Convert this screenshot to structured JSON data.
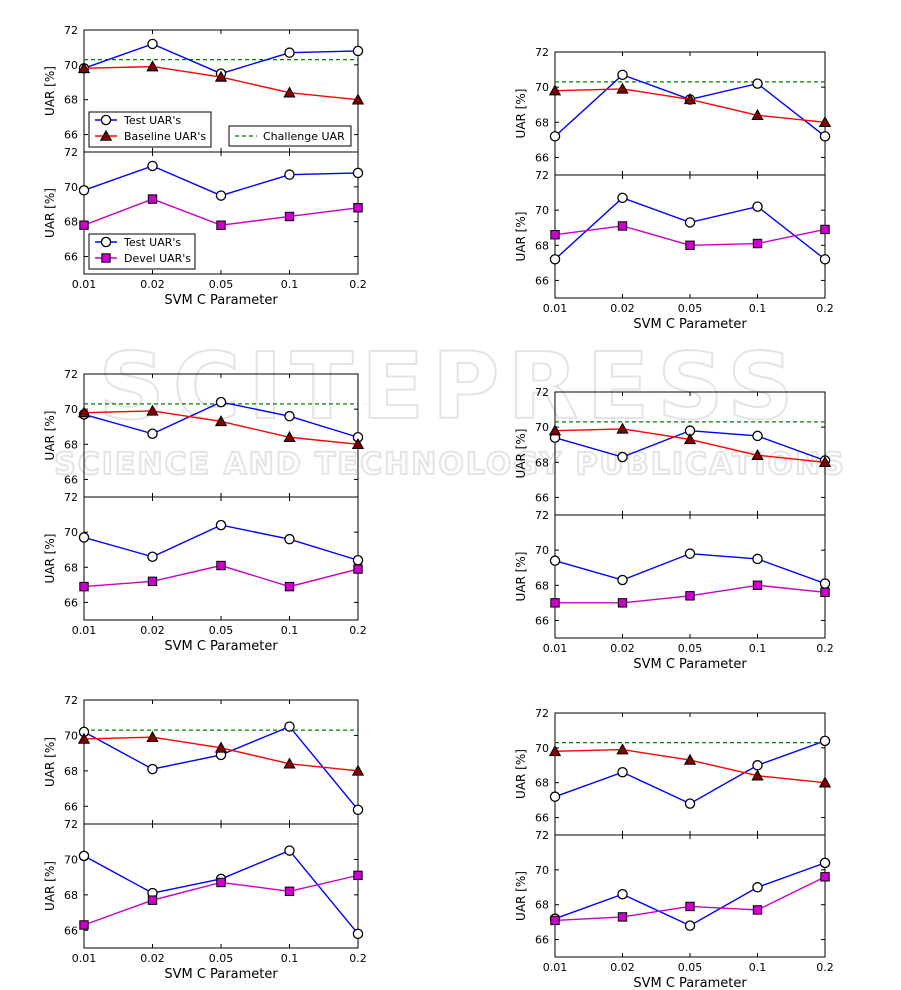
{
  "colors": {
    "test": "#0000ff",
    "baseline": "#ff0000",
    "devel": "#c800c8",
    "challenge": "#008000",
    "baseline_marker": "#800000",
    "devel_marker": "#cc00cc"
  },
  "watermark": {
    "line1": "SCITEPRESS",
    "line2": "SCIENCE AND TECHNOLOGY PUBLICATIONS"
  },
  "chart_data": [
    {
      "type": "line",
      "panel": "1-top",
      "categories": [
        "0.01",
        "0.02",
        "0.05",
        "0.1",
        "0.2"
      ],
      "ylabel": "UAR [%]",
      "ylim": [
        65,
        72
      ],
      "yticks": [
        66,
        68,
        70,
        72
      ],
      "challenge_uar": 70.3,
      "series": [
        {
          "name": "Test UAR's",
          "values": [
            69.8,
            71.2,
            69.5,
            70.7,
            70.8
          ]
        },
        {
          "name": "Baseline UAR's",
          "values": [
            69.8,
            69.9,
            69.3,
            68.4,
            68.0
          ]
        }
      ],
      "legend_items": [
        "Test UAR's",
        "Baseline UAR's",
        "Challenge UAR"
      ]
    },
    {
      "type": "line",
      "panel": "1-bottom",
      "categories": [
        "0.01",
        "0.02",
        "0.05",
        "0.1",
        "0.2"
      ],
      "ylabel": "UAR [%]",
      "xlabel": "SVM C Parameter",
      "ylim": [
        65,
        72
      ],
      "yticks": [
        66,
        68,
        70,
        72
      ],
      "series": [
        {
          "name": "Test UAR's",
          "values": [
            69.8,
            71.2,
            69.5,
            70.7,
            70.8
          ]
        },
        {
          "name": "Devel UAR's",
          "values": [
            67.8,
            69.3,
            67.8,
            68.3,
            68.8
          ]
        }
      ],
      "legend_items": [
        "Test UAR's",
        "Devel UAR's"
      ]
    },
    {
      "type": "line",
      "panel": "2-top",
      "categories": [
        "0.01",
        "0.02",
        "0.05",
        "0.1",
        "0.2"
      ],
      "ylabel": "UAR [%]",
      "ylim": [
        65,
        72
      ],
      "yticks": [
        66,
        68,
        70,
        72
      ],
      "challenge_uar": 70.3,
      "series": [
        {
          "name": "Test UAR's",
          "values": [
            67.2,
            70.7,
            69.3,
            70.2,
            67.2
          ]
        },
        {
          "name": "Baseline UAR's",
          "values": [
            69.8,
            69.9,
            69.3,
            68.4,
            68.0
          ]
        }
      ]
    },
    {
      "type": "line",
      "panel": "2-bottom",
      "categories": [
        "0.01",
        "0.02",
        "0.05",
        "0.1",
        "0.2"
      ],
      "ylabel": "UAR [%]",
      "xlabel": "SVM C Parameter",
      "ylim": [
        65,
        72
      ],
      "yticks": [
        66,
        68,
        70,
        72
      ],
      "series": [
        {
          "name": "Test UAR's",
          "values": [
            67.2,
            70.7,
            69.3,
            70.2,
            67.2
          ]
        },
        {
          "name": "Devel UAR's",
          "values": [
            68.6,
            69.1,
            68.0,
            68.1,
            68.9
          ]
        }
      ]
    },
    {
      "type": "line",
      "panel": "3-top",
      "categories": [
        "0.01",
        "0.02",
        "0.05",
        "0.1",
        "0.2"
      ],
      "ylabel": "UAR [%]",
      "ylim": [
        65,
        72
      ],
      "yticks": [
        66,
        68,
        70,
        72
      ],
      "challenge_uar": 70.3,
      "series": [
        {
          "name": "Test UAR's",
          "values": [
            69.7,
            68.6,
            70.4,
            69.6,
            68.4
          ]
        },
        {
          "name": "Baseline UAR's",
          "values": [
            69.8,
            69.9,
            69.3,
            68.4,
            68.0
          ]
        }
      ]
    },
    {
      "type": "line",
      "panel": "3-bottom",
      "categories": [
        "0.01",
        "0.02",
        "0.05",
        "0.1",
        "0.2"
      ],
      "ylabel": "UAR [%]",
      "xlabel": "SVM C Parameter",
      "ylim": [
        65,
        72
      ],
      "yticks": [
        66,
        68,
        70,
        72
      ],
      "series": [
        {
          "name": "Test UAR's",
          "values": [
            69.7,
            68.6,
            70.4,
            69.6,
            68.4
          ]
        },
        {
          "name": "Devel UAR's",
          "values": [
            66.9,
            67.2,
            68.1,
            66.9,
            67.9
          ]
        }
      ]
    },
    {
      "type": "line",
      "panel": "4-top",
      "categories": [
        "0.01",
        "0.02",
        "0.05",
        "0.1",
        "0.2"
      ],
      "ylabel": "UAR [%]",
      "ylim": [
        65,
        72
      ],
      "yticks": [
        66,
        68,
        70,
        72
      ],
      "challenge_uar": 70.3,
      "series": [
        {
          "name": "Test UAR's",
          "values": [
            69.4,
            68.3,
            69.8,
            69.5,
            68.1
          ]
        },
        {
          "name": "Baseline UAR's",
          "values": [
            69.8,
            69.9,
            69.3,
            68.4,
            68.0
          ]
        }
      ]
    },
    {
      "type": "line",
      "panel": "4-bottom",
      "categories": [
        "0.01",
        "0.02",
        "0.05",
        "0.1",
        "0.2"
      ],
      "ylabel": "UAR [%]",
      "xlabel": "SVM C Parameter",
      "ylim": [
        65,
        72
      ],
      "yticks": [
        66,
        68,
        70,
        72
      ],
      "series": [
        {
          "name": "Test UAR's",
          "values": [
            69.4,
            68.3,
            69.8,
            69.5,
            68.1
          ]
        },
        {
          "name": "Devel UAR's",
          "values": [
            67.0,
            67.0,
            67.4,
            68.0,
            67.6
          ]
        }
      ]
    },
    {
      "type": "line",
      "panel": "5-top",
      "categories": [
        "0.01",
        "0.02",
        "0.05",
        "0.1",
        "0.2"
      ],
      "ylabel": "UAR [%]",
      "ylim": [
        65,
        72
      ],
      "yticks": [
        66,
        68,
        70,
        72
      ],
      "challenge_uar": 70.3,
      "series": [
        {
          "name": "Test UAR's",
          "values": [
            70.2,
            68.1,
            68.9,
            70.5,
            65.8
          ]
        },
        {
          "name": "Baseline UAR's",
          "values": [
            69.8,
            69.9,
            69.3,
            68.4,
            68.0
          ]
        }
      ]
    },
    {
      "type": "line",
      "panel": "5-bottom",
      "categories": [
        "0.01",
        "0.02",
        "0.05",
        "0.1",
        "0.2"
      ],
      "ylabel": "UAR [%]",
      "xlabel": "SVM C Parameter",
      "ylim": [
        65,
        72
      ],
      "yticks": [
        66,
        68,
        70,
        72
      ],
      "series": [
        {
          "name": "Test UAR's",
          "values": [
            70.2,
            68.1,
            68.9,
            70.5,
            65.8
          ]
        },
        {
          "name": "Devel UAR's",
          "values": [
            66.3,
            67.7,
            68.7,
            68.2,
            69.1
          ]
        }
      ]
    },
    {
      "type": "line",
      "panel": "6-top",
      "categories": [
        "0.01",
        "0.02",
        "0.05",
        "0.1",
        "0.2"
      ],
      "ylabel": "UAR [%]",
      "ylim": [
        65,
        72
      ],
      "yticks": [
        66,
        68,
        70,
        72
      ],
      "challenge_uar": 70.3,
      "series": [
        {
          "name": "Test UAR's",
          "values": [
            67.2,
            68.6,
            66.8,
            69.0,
            70.4
          ]
        },
        {
          "name": "Baseline UAR's",
          "values": [
            69.8,
            69.9,
            69.3,
            68.4,
            68.0
          ]
        }
      ]
    },
    {
      "type": "line",
      "panel": "6-bottom",
      "categories": [
        "0.01",
        "0.02",
        "0.05",
        "0.1",
        "0.2"
      ],
      "ylabel": "UAR [%]",
      "xlabel": "SVM C Parameter",
      "ylim": [
        65,
        72
      ],
      "yticks": [
        66,
        68,
        70,
        72
      ],
      "series": [
        {
          "name": "Test UAR's",
          "values": [
            67.2,
            68.6,
            66.8,
            69.0,
            70.4
          ]
        },
        {
          "name": "Devel UAR's",
          "values": [
            67.1,
            67.3,
            67.9,
            67.7,
            69.6
          ]
        }
      ]
    }
  ]
}
